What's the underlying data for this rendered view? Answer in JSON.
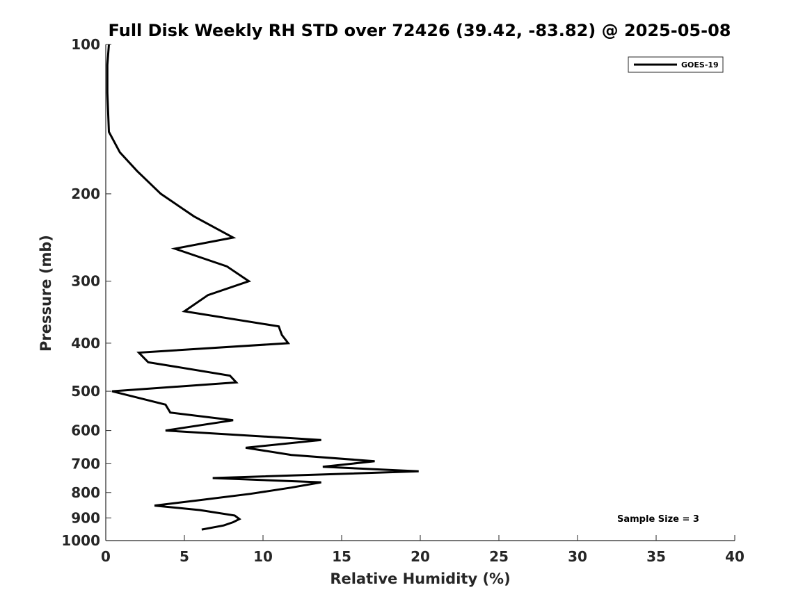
{
  "chart_data": {
    "type": "line",
    "title": "Full Disk Weekly RH STD over 72426 (39.42, -83.82) @ 2025-05-08",
    "xlabel": "Relative Humidity (%)",
    "ylabel": "Pressure (mb)",
    "xlim": [
      0,
      40
    ],
    "ylim": [
      100,
      1000
    ],
    "y_scale": "log",
    "y_reversed": true,
    "xticks": [
      0,
      5,
      10,
      15,
      20,
      25,
      30,
      35,
      40
    ],
    "xtick_labels": [
      "0",
      "5",
      "10",
      "15",
      "20",
      "25",
      "30",
      "35",
      "40"
    ],
    "yticks": [
      100,
      200,
      300,
      400,
      500,
      600,
      700,
      800,
      900,
      1000
    ],
    "ytick_labels": [
      "100",
      "200",
      "300",
      "400",
      "500",
      "600",
      "700",
      "800",
      "900",
      "1000"
    ],
    "grid": false,
    "legend_position": "top-right",
    "annotation": "Sample Size = 3",
    "series": [
      {
        "name": "GOES-19",
        "color": "#000000",
        "x": [
          0.2,
          0.1,
          0.1,
          0.2,
          0.9,
          2.0,
          3.5,
          5.6,
          8.1,
          4.4,
          7.7,
          9.1,
          6.5,
          5.0,
          11.0,
          11.2,
          11.6,
          2.1,
          2.7,
          7.9,
          8.3,
          0.4,
          3.8,
          4.1,
          8.1,
          3.8,
          13.7,
          8.9,
          11.8,
          17.1,
          13.8,
          19.9,
          6.8,
          13.7,
          11.8,
          9.2,
          5.8,
          3.1,
          6.0,
          8.2,
          8.5,
          8.1,
          7.5,
          6.1
        ],
        "y": [
          100,
          110,
          125,
          150,
          165,
          180,
          200,
          222,
          245,
          258,
          280,
          300,
          320,
          345,
          370,
          385,
          400,
          418,
          437,
          465,
          480,
          500,
          532,
          552,
          572,
          600,
          627,
          650,
          672,
          692,
          710,
          725,
          748,
          763,
          782,
          805,
          830,
          850,
          868,
          890,
          905,
          918,
          932,
          950
        ]
      }
    ]
  }
}
